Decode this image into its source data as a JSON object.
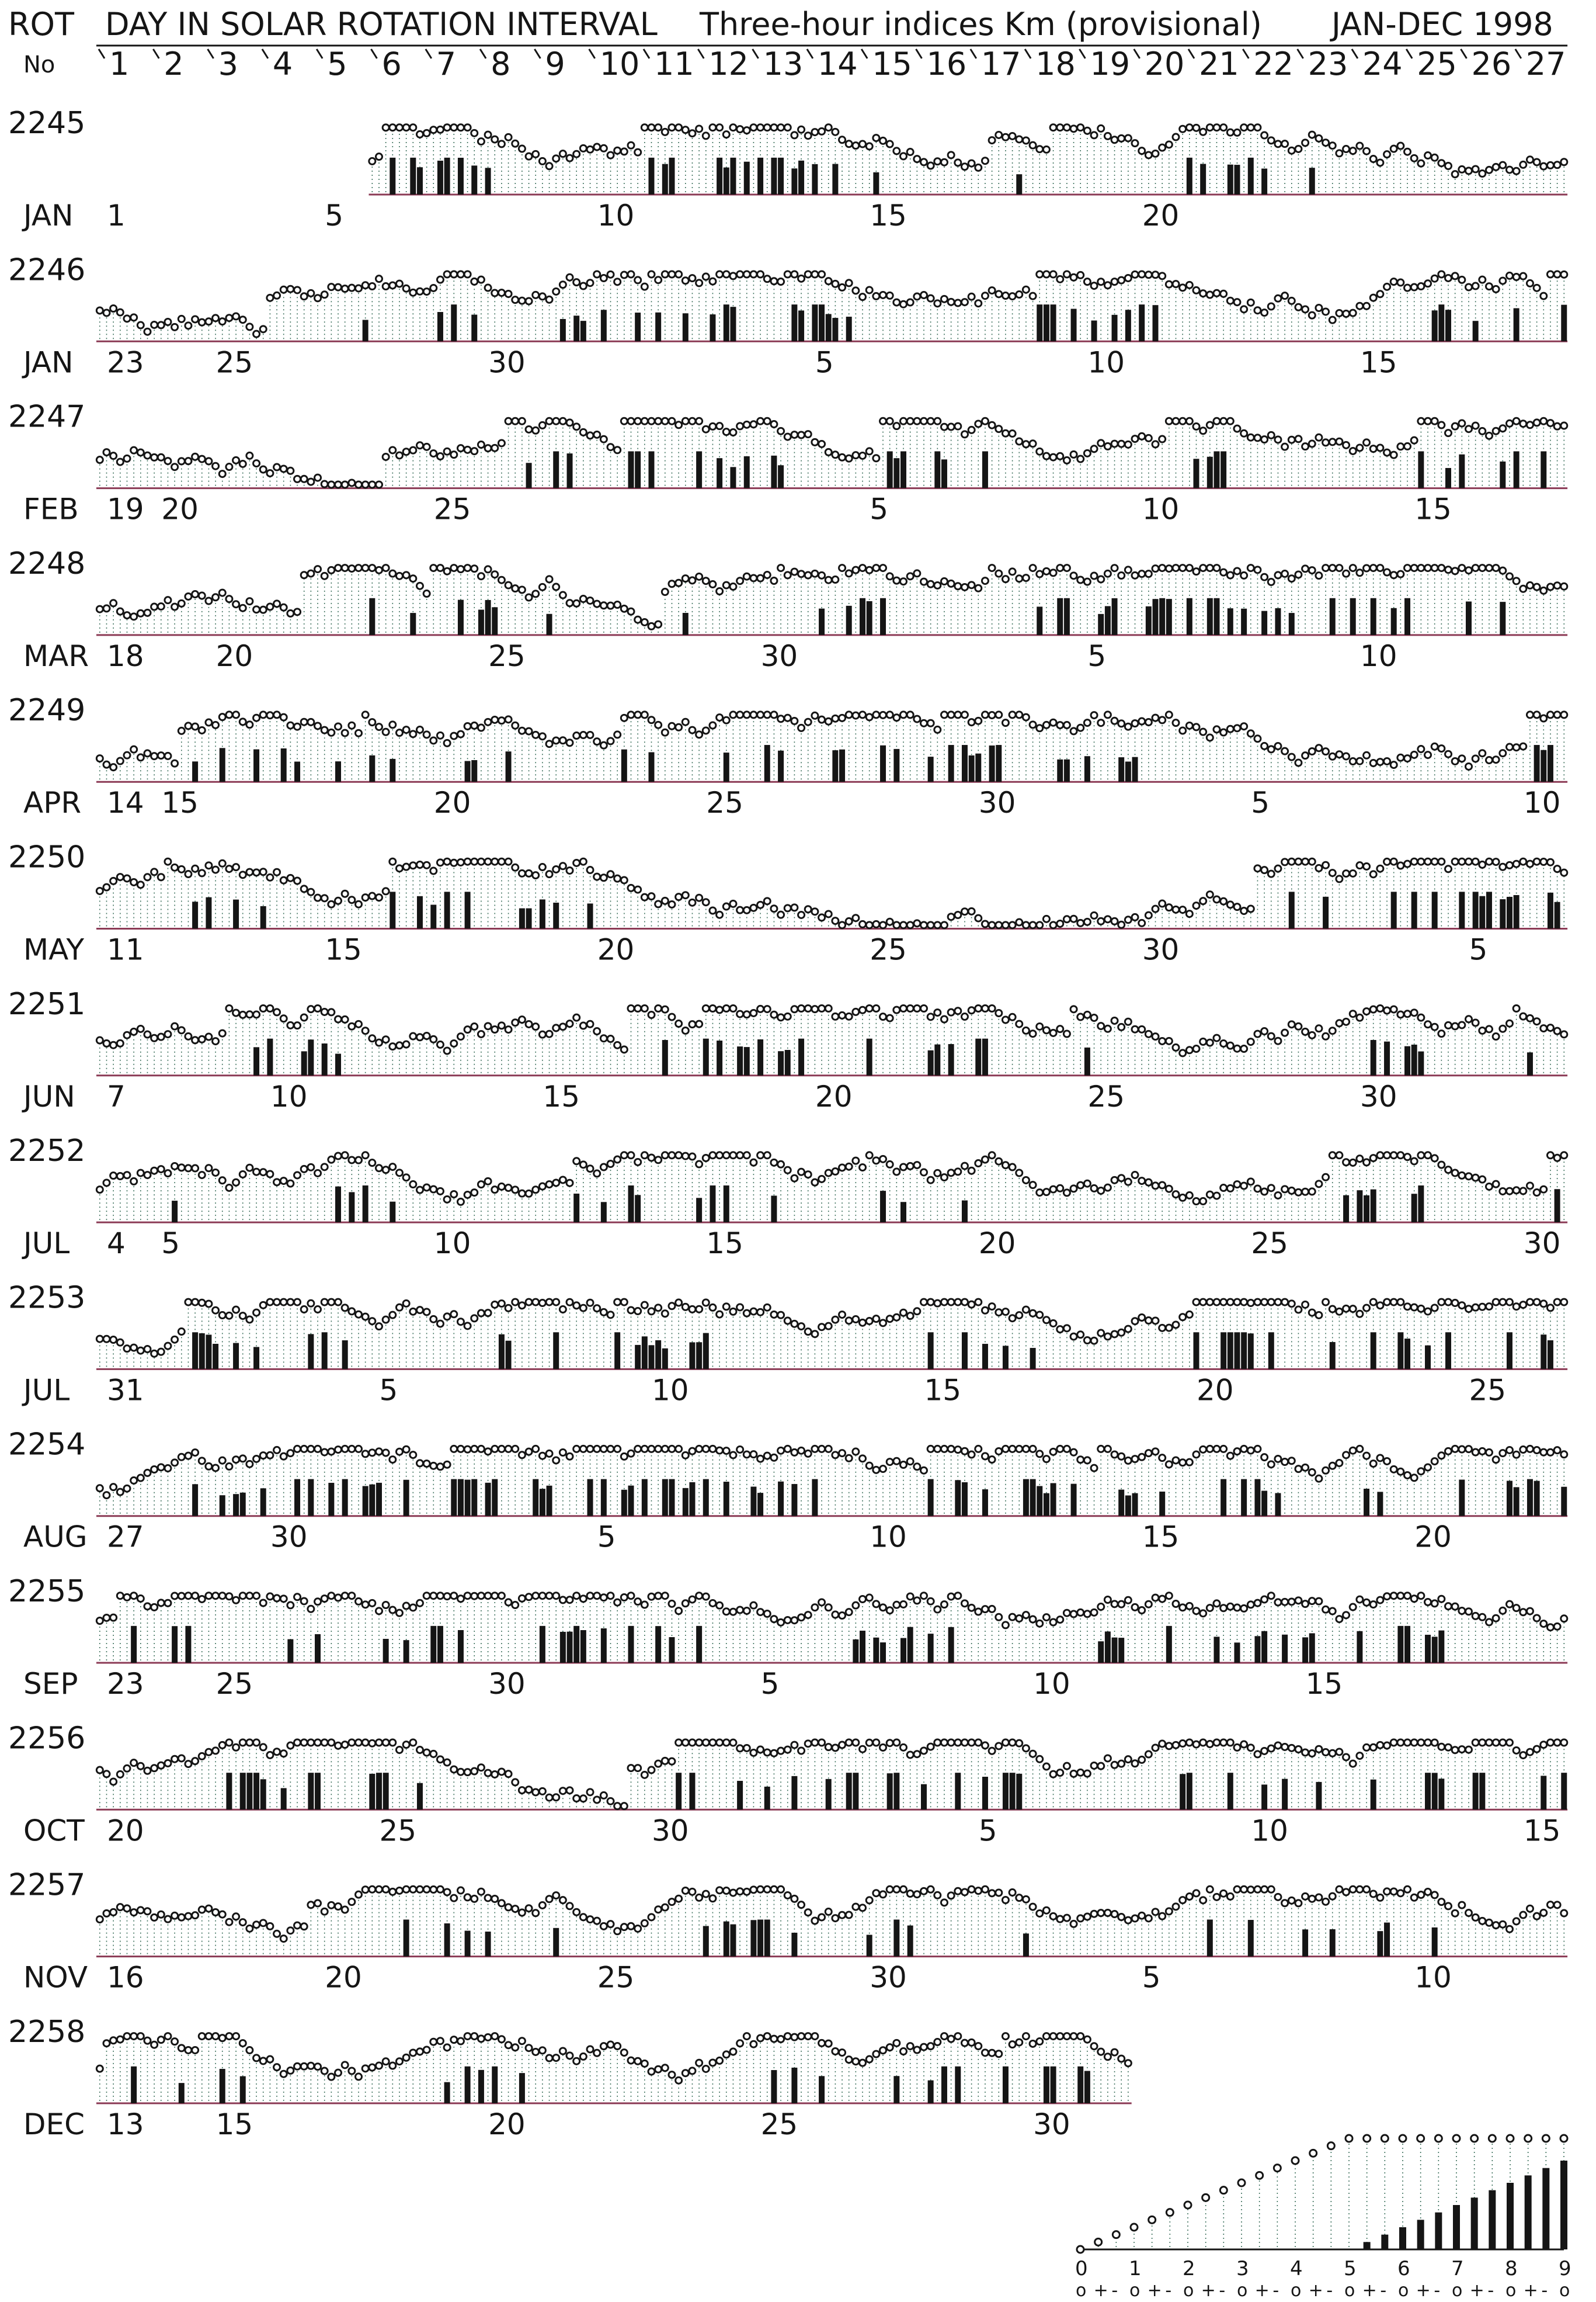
{
  "header": {
    "rot_label": "ROT",
    "no_label": "No",
    "title": "DAY IN SOLAR ROTATION INTERVAL",
    "subtitle": "Three-hour indices Km (provisional)",
    "period": "JAN-DEC 1998",
    "day_numbers": [
      "1",
      "2",
      "3",
      "4",
      "5",
      "6",
      "7",
      "8",
      "9",
      "10",
      "11",
      "12",
      "13",
      "14",
      "15",
      "16",
      "17",
      "18",
      "19",
      "20",
      "21",
      "22",
      "23",
      "24",
      "25",
      "26",
      "27"
    ]
  },
  "chart_data": {
    "type": "bar",
    "title": "DAY IN SOLAR ROTATION INTERVAL  Three-hour indices Km (provisional) JAN-DEC 1998",
    "xlabel": "DAY IN SOLAR ROTATION INTERVAL",
    "ylabel": "",
    "ylim": [
      0,
      9
    ],
    "grid": false,
    "colors": {
      "ink": "#151515",
      "baseline": "#8b3a55",
      "dotted_fill": "#3a6e5a"
    },
    "rows": [
      {
        "rot": "2245",
        "month": "JAN",
        "start_day_index": 6,
        "day_ticks": [
          {
            "day": 1,
            "label": "1"
          },
          {
            "day": 5,
            "label": "5"
          },
          {
            "day": 10,
            "label": "10"
          },
          {
            "day": 15,
            "label": "15"
          },
          {
            "day": 20,
            "label": "20"
          }
        ]
      },
      {
        "rot": "2246",
        "month": "JAN",
        "start_day_index": 1,
        "day_ticks": [
          {
            "day": 1,
            "label": "23"
          },
          {
            "day": 3,
            "label": "25"
          },
          {
            "day": 8,
            "label": "30"
          },
          {
            "day": 14,
            "label": "5"
          },
          {
            "day": 19,
            "label": "10"
          },
          {
            "day": 24,
            "label": "15"
          }
        ]
      },
      {
        "rot": "2247",
        "month": "FEB",
        "start_day_index": 1,
        "day_ticks": [
          {
            "day": 1,
            "label": "19"
          },
          {
            "day": 2,
            "label": "20"
          },
          {
            "day": 7,
            "label": "25"
          },
          {
            "day": 15,
            "label": "5"
          },
          {
            "day": 20,
            "label": "10"
          },
          {
            "day": 25,
            "label": "15"
          }
        ]
      },
      {
        "rot": "2248",
        "month": "MAR",
        "start_day_index": 1,
        "day_ticks": [
          {
            "day": 1,
            "label": "18"
          },
          {
            "day": 3,
            "label": "20"
          },
          {
            "day": 8,
            "label": "25"
          },
          {
            "day": 13,
            "label": "30"
          },
          {
            "day": 19,
            "label": "5"
          },
          {
            "day": 24,
            "label": "10"
          }
        ]
      },
      {
        "rot": "2249",
        "month": "APR",
        "start_day_index": 1,
        "day_ticks": [
          {
            "day": 1,
            "label": "14"
          },
          {
            "day": 2,
            "label": "15"
          },
          {
            "day": 7,
            "label": "20"
          },
          {
            "day": 12,
            "label": "25"
          },
          {
            "day": 17,
            "label": "30"
          },
          {
            "day": 22,
            "label": "5"
          },
          {
            "day": 27,
            "label": "10"
          }
        ]
      },
      {
        "rot": "2250",
        "month": "MAY",
        "start_day_index": 1,
        "day_ticks": [
          {
            "day": 1,
            "label": "11"
          },
          {
            "day": 5,
            "label": "15"
          },
          {
            "day": 10,
            "label": "20"
          },
          {
            "day": 15,
            "label": "25"
          },
          {
            "day": 20,
            "label": "30"
          },
          {
            "day": 26,
            "label": "5"
          }
        ]
      },
      {
        "rot": "2251",
        "month": "JUN",
        "start_day_index": 1,
        "day_ticks": [
          {
            "day": 1,
            "label": "7"
          },
          {
            "day": 4,
            "label": "10"
          },
          {
            "day": 9,
            "label": "15"
          },
          {
            "day": 14,
            "label": "20"
          },
          {
            "day": 19,
            "label": "25"
          },
          {
            "day": 24,
            "label": "30"
          }
        ]
      },
      {
        "rot": "2252",
        "month": "JUL",
        "start_day_index": 1,
        "day_ticks": [
          {
            "day": 1,
            "label": "4"
          },
          {
            "day": 2,
            "label": "5"
          },
          {
            "day": 7,
            "label": "10"
          },
          {
            "day": 12,
            "label": "15"
          },
          {
            "day": 17,
            "label": "20"
          },
          {
            "day": 22,
            "label": "25"
          },
          {
            "day": 27,
            "label": "30"
          }
        ]
      },
      {
        "rot": "2253",
        "month": "JUL",
        "start_day_index": 1,
        "day_ticks": [
          {
            "day": 1,
            "label": "31"
          },
          {
            "day": 6,
            "label": "5"
          },
          {
            "day": 11,
            "label": "10"
          },
          {
            "day": 16,
            "label": "15"
          },
          {
            "day": 21,
            "label": "20"
          },
          {
            "day": 26,
            "label": "25"
          }
        ]
      },
      {
        "rot": "2254",
        "month": "AUG",
        "start_day_index": 1,
        "day_ticks": [
          {
            "day": 1,
            "label": "27"
          },
          {
            "day": 4,
            "label": "30"
          },
          {
            "day": 10,
            "label": "5"
          },
          {
            "day": 15,
            "label": "10"
          },
          {
            "day": 20,
            "label": "15"
          },
          {
            "day": 25,
            "label": "20"
          }
        ]
      },
      {
        "rot": "2255",
        "month": "SEP",
        "start_day_index": 1,
        "day_ticks": [
          {
            "day": 1,
            "label": "23"
          },
          {
            "day": 3,
            "label": "25"
          },
          {
            "day": 8,
            "label": "30"
          },
          {
            "day": 13,
            "label": "5"
          },
          {
            "day": 18,
            "label": "10"
          },
          {
            "day": 23,
            "label": "15"
          }
        ]
      },
      {
        "rot": "2256",
        "month": "OCT",
        "start_day_index": 1,
        "day_ticks": [
          {
            "day": 1,
            "label": "20"
          },
          {
            "day": 6,
            "label": "25"
          },
          {
            "day": 11,
            "label": "30"
          },
          {
            "day": 17,
            "label": "5"
          },
          {
            "day": 22,
            "label": "10"
          },
          {
            "day": 27,
            "label": "15"
          }
        ]
      },
      {
        "rot": "2257",
        "month": "NOV",
        "start_day_index": 1,
        "day_ticks": [
          {
            "day": 1,
            "label": "16"
          },
          {
            "day": 5,
            "label": "20"
          },
          {
            "day": 10,
            "label": "25"
          },
          {
            "day": 15,
            "label": "30"
          },
          {
            "day": 20,
            "label": "5"
          },
          {
            "day": 25,
            "label": "10"
          }
        ]
      },
      {
        "rot": "2258",
        "month": "DEC",
        "start_day_index": 1,
        "end_day_index": 19,
        "day_ticks": [
          {
            "day": 1,
            "label": "13"
          },
          {
            "day": 3,
            "label": "15"
          },
          {
            "day": 8,
            "label": "20"
          },
          {
            "day": 13,
            "label": "25"
          },
          {
            "day": 18,
            "label": "30"
          }
        ]
      }
    ],
    "legend": {
      "scale": [
        "0",
        "1",
        "2",
        "3",
        "4",
        "5",
        "6",
        "7",
        "8",
        "9"
      ],
      "sub_labels": [
        "o",
        "+",
        "-",
        "o",
        "+",
        "-",
        "o",
        "+",
        "-",
        "o",
        "+",
        "-",
        "o",
        "+",
        "-",
        "o",
        "+",
        "-",
        "o",
        "+",
        "-",
        "o",
        "+",
        "-",
        "o",
        "+",
        "-",
        "o"
      ]
    }
  }
}
